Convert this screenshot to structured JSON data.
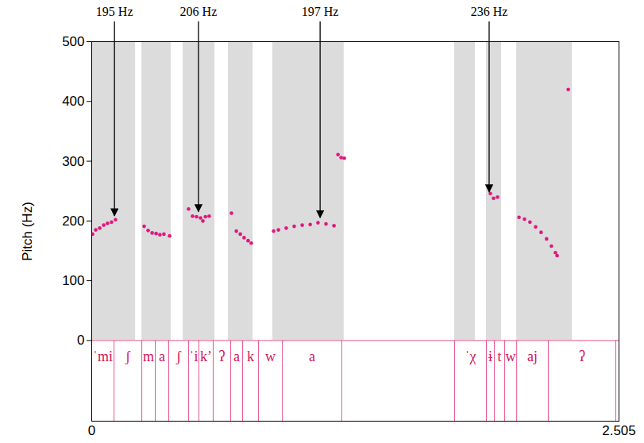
{
  "chart_data": {
    "type": "scatter",
    "marker": "circle",
    "color": "#e0177e",
    "x": [
      0.004,
      0.019,
      0.038,
      0.057,
      0.075,
      0.094,
      0.113,
      0.249,
      0.268,
      0.287,
      0.306,
      0.324,
      0.343,
      0.37,
      0.46,
      0.479,
      0.498,
      0.517,
      0.528,
      0.54,
      0.558,
      0.664,
      0.687,
      0.706,
      0.724,
      0.743,
      0.758,
      0.864,
      0.887,
      0.924,
      0.962,
      1.0,
      1.038,
      1.075,
      1.113,
      1.151,
      1.17,
      1.185,
      1.2,
      1.894,
      1.909,
      1.928,
      2.03,
      2.056,
      2.082,
      2.109,
      2.135,
      2.161,
      2.184,
      2.203,
      2.211,
      2.264
    ],
    "values": [
      178,
      185,
      188,
      193,
      196,
      198,
      202,
      191,
      184,
      180,
      179,
      177,
      178,
      175,
      220,
      208,
      207,
      205,
      200,
      207,
      208,
      213,
      183,
      178,
      172,
      167,
      163,
      183,
      185,
      188,
      191,
      193,
      194,
      197,
      195,
      192,
      311,
      306,
      305,
      246,
      238,
      240,
      206,
      203,
      198,
      190,
      181,
      170,
      158,
      147,
      142,
      420
    ],
    "y_label": "Pitch (Hz)",
    "xlim": [
      0,
      2.505
    ],
    "xticks": [
      0,
      2.505
    ],
    "ylim": [
      -135,
      500
    ],
    "yticks": [
      0,
      100,
      200,
      300,
      400,
      500
    ],
    "baseline": 0,
    "sound_intervals": [
      [
        0,
        0.208
      ],
      [
        0.238,
        0.377
      ],
      [
        0.434,
        0.585
      ],
      [
        0.649,
        0.766
      ],
      [
        0.86,
        1.199
      ],
      [
        1.724,
        1.822
      ],
      [
        1.875,
        1.947
      ],
      [
        2.019,
        2.283
      ]
    ],
    "segments": [
      {
        "label": "ˈmi",
        "start": 0,
        "end": 0.106
      },
      {
        "label": "ʃ",
        "start": 0.106,
        "end": 0.238
      },
      {
        "label": "m",
        "start": 0.238,
        "end": 0.302
      },
      {
        "label": "a",
        "start": 0.302,
        "end": 0.366
      },
      {
        "label": "ʃ",
        "start": 0.366,
        "end": 0.46
      },
      {
        "label": "ˈi",
        "start": 0.46,
        "end": 0.509
      },
      {
        "label": "k’",
        "start": 0.509,
        "end": 0.577
      },
      {
        "label": "ʔ",
        "start": 0.577,
        "end": 0.66
      },
      {
        "label": "a",
        "start": 0.66,
        "end": 0.717
      },
      {
        "label": "k",
        "start": 0.717,
        "end": 0.792
      },
      {
        "label": "w",
        "start": 0.792,
        "end": 0.906
      },
      {
        "label": "a",
        "start": 0.906,
        "end": 1.188
      },
      {
        "label": "ˈχ",
        "start": 1.724,
        "end": 1.875
      },
      {
        "label": "ɨ",
        "start": 1.875,
        "end": 1.913
      },
      {
        "label": "t",
        "start": 1.913,
        "end": 1.962
      },
      {
        "label": "w",
        "start": 1.962,
        "end": 2.019
      },
      {
        "label": "aj",
        "start": 2.019,
        "end": 2.169
      },
      {
        "label": "ʔ",
        "start": 2.169,
        "end": 2.49
      }
    ],
    "annotations": [
      {
        "text": "195 Hz",
        "x": 0.11,
        "y": 200
      },
      {
        "text": "206 Hz",
        "x": 0.509,
        "y": 207
      },
      {
        "text": "197 Hz",
        "x": 1.087,
        "y": 197
      },
      {
        "text": "236 Hz",
        "x": 1.89,
        "y": 240
      }
    ],
    "grid": false
  }
}
